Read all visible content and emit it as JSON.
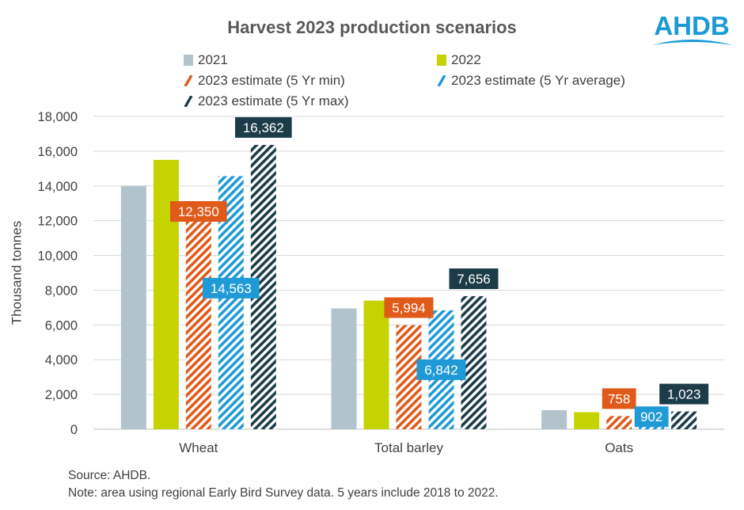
{
  "brand": {
    "logo_text": "AHDB",
    "logo_color": "#1a9ad6"
  },
  "chart_data": {
    "type": "bar",
    "title": "Harvest 2023 production scenarios",
    "ylabel": "Thousand tonnes",
    "xlabel": "",
    "ylim": [
      0,
      18000
    ],
    "yticks": [
      0,
      2000,
      4000,
      6000,
      8000,
      10000,
      12000,
      14000,
      16000,
      18000
    ],
    "ytick_labels": [
      "0",
      "2,000",
      "4,000",
      "6,000",
      "8,000",
      "10,000",
      "12,000",
      "14,000",
      "16,000",
      "18,000"
    ],
    "grid": true,
    "legend_position": "top",
    "categories": [
      "Wheat",
      "Total barley",
      "Oats"
    ],
    "series": [
      {
        "name": "2021",
        "values": [
          14000,
          6950,
          1100
        ],
        "color": "#b3c3cb",
        "pattern": "solid",
        "show_labels": false
      },
      {
        "name": "2022",
        "values": [
          15500,
          7400,
          980
        ],
        "color": "#c5d300",
        "pattern": "solid",
        "show_labels": false
      },
      {
        "name": "2023 estimate (5 Yr min)",
        "values": [
          12350,
          5994,
          758
        ],
        "labels": [
          "12,350",
          "5,994",
          "758"
        ],
        "color": "#e05a1a",
        "pattern": "hatch",
        "show_labels": true
      },
      {
        "name": "2023 estimate (5 Yr average)",
        "values": [
          14563,
          6842,
          902
        ],
        "labels": [
          "14,563",
          "6,842",
          "902"
        ],
        "color": "#1f9ad6",
        "pattern": "hatch",
        "show_labels": true
      },
      {
        "name": "2023 estimate (5 Yr max)",
        "values": [
          16362,
          7656,
          1023
        ],
        "labels": [
          "16,362",
          "7,656",
          "1,023"
        ],
        "color": "#1c3c4a",
        "pattern": "hatch",
        "show_labels": true
      }
    ]
  },
  "footnotes": {
    "source": "Source: AHDB.",
    "note": "Note: area using regional Early Bird Survey data. 5 years include 2018 to 2022."
  }
}
